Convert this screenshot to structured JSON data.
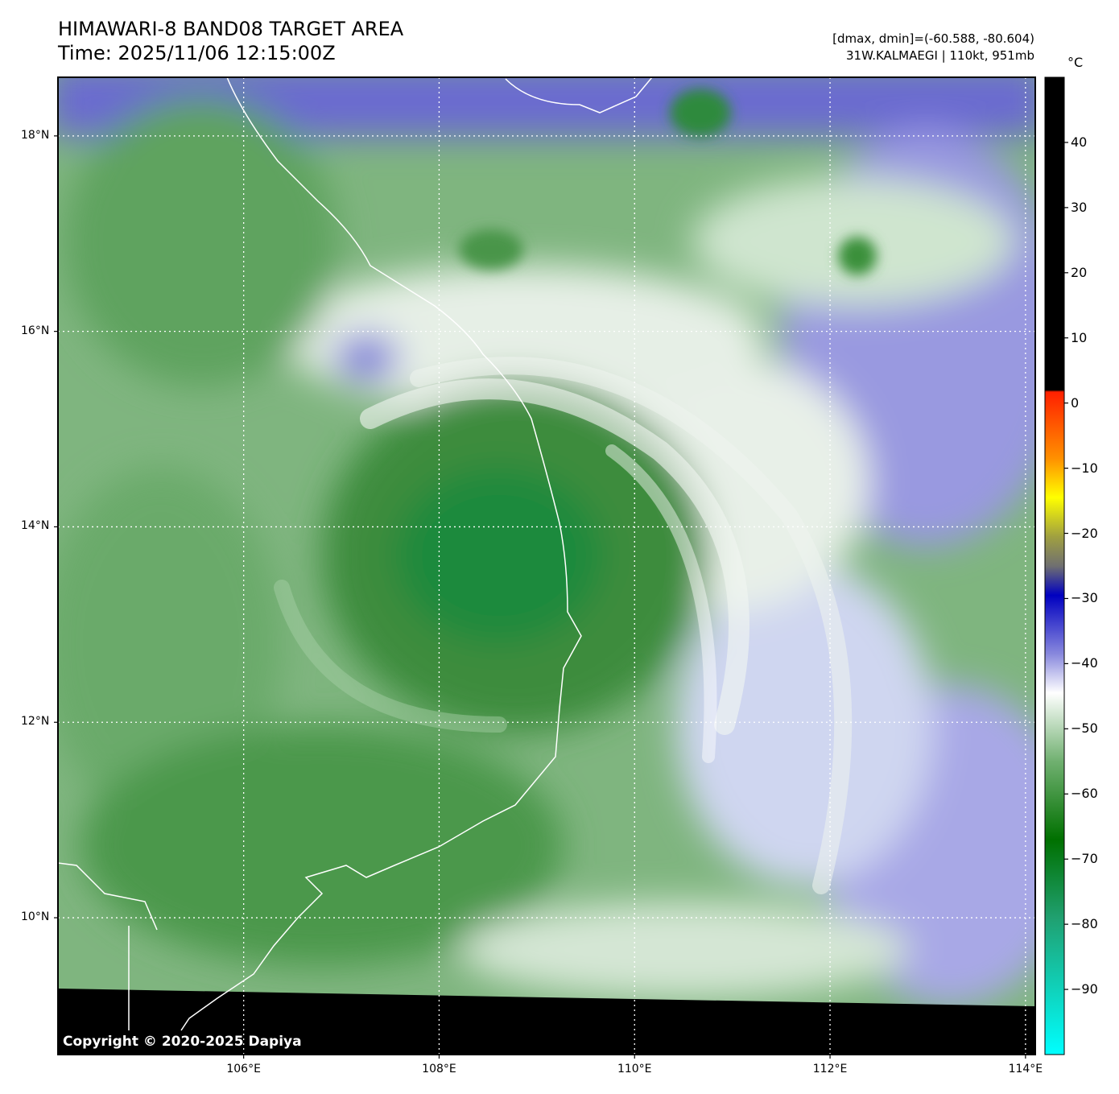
{
  "header": {
    "title_line1": "HIMAWARI-8 BAND08 TARGET AREA",
    "title_line2": "Time: 2025/11/06 12:15:00Z",
    "info_line1": "[dmax, dmin]=(-60.588, -80.604)",
    "info_line2": "31W.KALMAEGI | 110kt, 951mb"
  },
  "colorbar": {
    "unit": "°C",
    "ticks": [
      "40",
      "30",
      "20",
      "10",
      "0",
      "−10",
      "−20",
      "−30",
      "−40",
      "−50",
      "−60",
      "−70",
      "−80",
      "−90"
    ],
    "tick_values": [
      40,
      30,
      20,
      10,
      0,
      -10,
      -20,
      -30,
      -40,
      -50,
      -60,
      -70,
      -80,
      -90
    ],
    "range": [
      -100,
      50
    ]
  },
  "axes": {
    "lat_labels": [
      "18°N",
      "16°N",
      "14°N",
      "12°N",
      "10°N"
    ],
    "lat_values": [
      18,
      16,
      14,
      12,
      10
    ],
    "lon_labels": [
      "106°E",
      "108°E",
      "110°E",
      "112°E",
      "114°E"
    ],
    "lon_values": [
      106,
      108,
      110,
      112,
      114
    ],
    "lon_range": [
      104.1,
      114.1
    ],
    "lat_range": [
      8.6,
      18.6
    ]
  },
  "storm": {
    "center_lon": 108.8,
    "center_lat": 13.6
  },
  "copyright": "Copyright © 2020-2025 Dapiya"
}
